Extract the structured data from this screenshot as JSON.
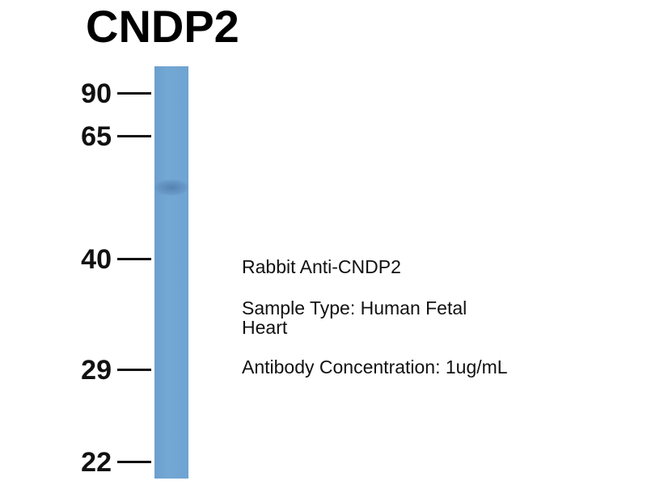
{
  "title": "CNDP2",
  "lane_color": "#6fa3d1",
  "markers": [
    "90",
    "65",
    "40",
    "29",
    "22"
  ],
  "info": {
    "antibody": "Rabbit Anti-CNDP2",
    "sample_line1": "Sample Type: Human Fetal",
    "sample_line2": "Heart",
    "concentration": "Antibody Concentration: 1ug/mL"
  }
}
